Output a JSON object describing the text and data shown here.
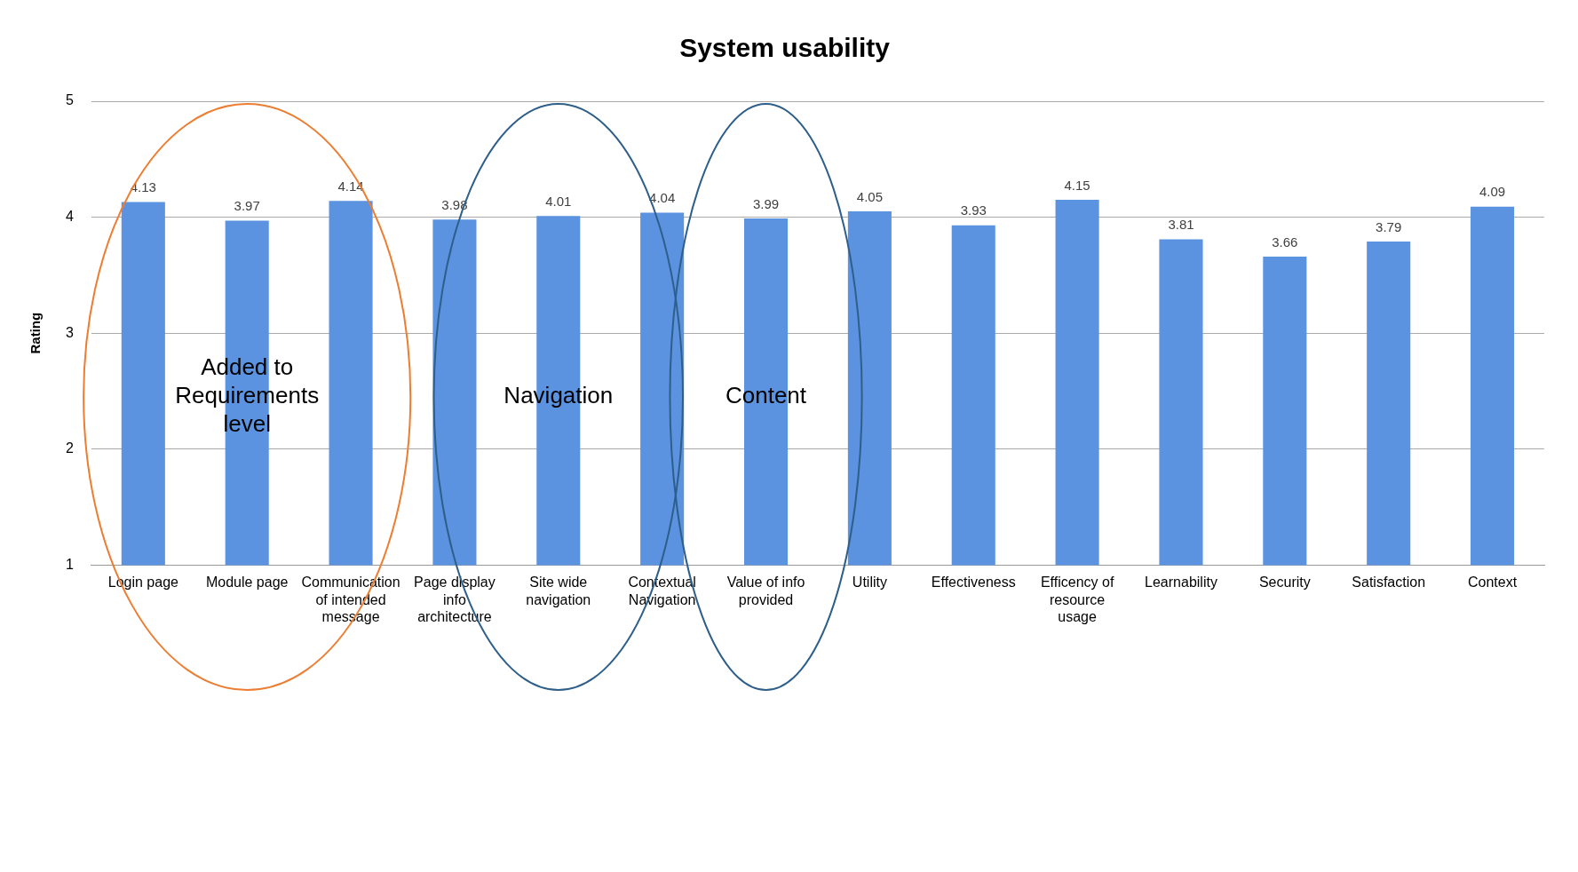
{
  "chart_data": {
    "type": "bar",
    "title": "System usability",
    "ylabel": "Rating",
    "categories": [
      "Login page",
      "Module page",
      "Communication of intended message",
      "Page display info architecture",
      "Site wide navigation",
      "Contextual Navigation",
      "Value of info provided",
      "Utility",
      "Effectiveness",
      "Efficency of resource usage",
      "Learnability",
      "Security",
      "Satisfaction",
      "Context"
    ],
    "values": [
      4.13,
      3.97,
      4.14,
      3.98,
      4.01,
      4.04,
      3.99,
      4.05,
      3.93,
      4.15,
      3.81,
      3.66,
      3.79,
      4.09
    ],
    "color": "#5b93e0",
    "ylim": [
      1,
      5
    ],
    "yticks": [
      1,
      2,
      3,
      4,
      5
    ],
    "grid": "y",
    "legend": false,
    "data_labels": true,
    "annotations": [
      "Added to Requirements level",
      "Navigation",
      "Content"
    ]
  }
}
